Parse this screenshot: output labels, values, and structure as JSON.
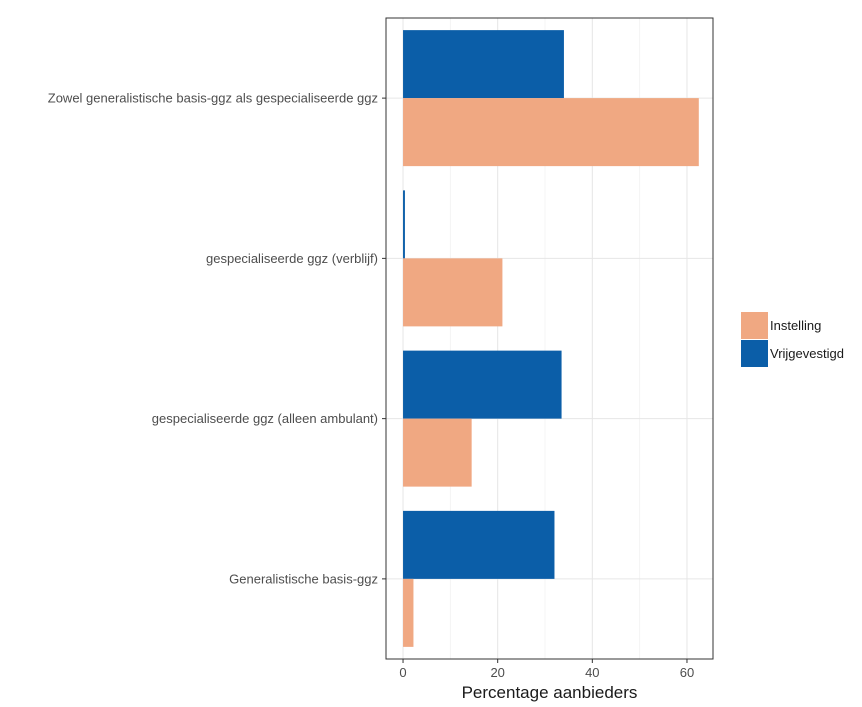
{
  "chart_data": {
    "type": "bar",
    "orientation": "horizontal",
    "categories": [
      "Zowel generalistische basis-ggz als gespecialiseerde ggz",
      "gespecialiseerde ggz (verblijf)",
      "gespecialiseerde ggz (alleen ambulant)",
      "Generalistische basis-ggz"
    ],
    "series": [
      {
        "name": "Vrijgevestigd",
        "color": "#0b5ea8",
        "values": [
          34,
          0.4,
          33.5,
          32
        ]
      },
      {
        "name": "Instelling",
        "color": "#f0a882",
        "values": [
          62.5,
          21,
          14.5,
          2.2
        ]
      }
    ],
    "x_ticks": [
      "0",
      "20",
      "40",
      "60"
    ],
    "xlabel": "Percentage aanbieders",
    "ylabel": "",
    "xlim": [
      -3.6,
      65.5
    ],
    "grid": true,
    "legend": {
      "position": "right",
      "entries": [
        {
          "label": "Instelling",
          "color": "#f0a882"
        },
        {
          "label": "Vrijgevestigd",
          "color": "#0b5ea8"
        }
      ]
    }
  }
}
